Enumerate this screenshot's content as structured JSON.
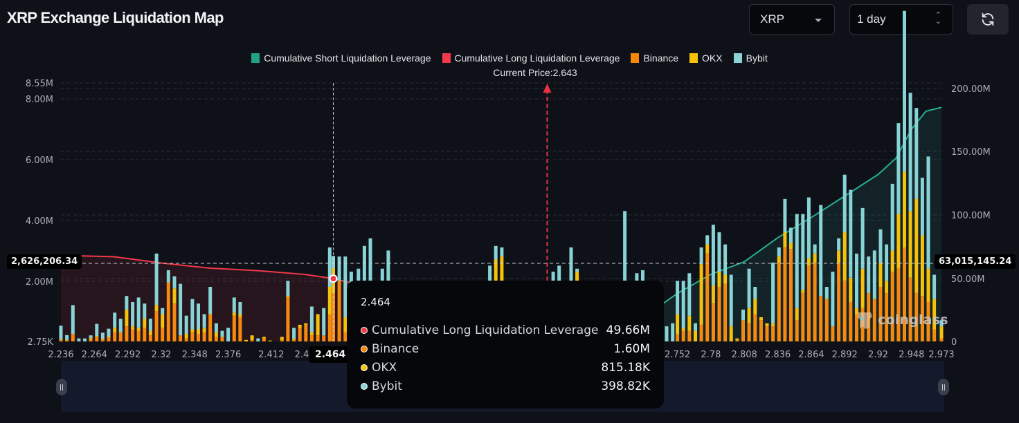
{
  "header": {
    "title": "XRP Exchange Liquidation Map",
    "coin_select": "XRP",
    "range_select": "1 day",
    "refresh_icon": "refresh-icon"
  },
  "colors": {
    "short_cumulative": "#26a889",
    "long_cumulative": "#f0394b",
    "binance": "#f58a0e",
    "okx": "#f5c10b",
    "bybit": "#87d3d6",
    "background": "#0f1118"
  },
  "legend": [
    {
      "label": "Cumulative Short Liquidation Leverage",
      "color": "#22a388"
    },
    {
      "label": "Cumulative Long Liquidation Leverage",
      "color": "#f23a4c"
    },
    {
      "label": "Binance",
      "color": "#f7870a"
    },
    {
      "label": "OKX",
      "color": "#f6c40a"
    },
    {
      "label": "Bybit",
      "color": "#88d5d8"
    }
  ],
  "current_price_label": "Current Price:2.643",
  "crosshair": {
    "left_value": "2,626,206.34",
    "right_value": "63,015,145.24",
    "x_value": "2.464"
  },
  "tooltip": {
    "title": "2.464",
    "rows": [
      {
        "label": "Cumulative Long Liquidation Leverage",
        "value": "49.66M",
        "color": "#f23a4c"
      },
      {
        "label": "Binance",
        "value": "1.60M",
        "color": "#f7870a"
      },
      {
        "label": "OKX",
        "value": "815.18K",
        "color": "#f6c40a"
      },
      {
        "label": "Bybit",
        "value": "398.82K",
        "color": "#88d5d8"
      }
    ]
  },
  "watermark": "coinglass",
  "chart_data": {
    "type": "bar",
    "title": "XRP Exchange Liquidation Map",
    "current_price": 2.643,
    "x_tick_labels": [
      "2.236",
      "2.264",
      "2.292",
      "2.32",
      "2.348",
      "2.376",
      "2.412",
      "2.44",
      "2.464",
      "2.752",
      "2.78",
      "2.808",
      "2.836",
      "2.864",
      "2.892",
      "2.92",
      "2.948",
      "2.973"
    ],
    "x_range": [
      2.236,
      2.973
    ],
    "left_axis": {
      "ticks": [
        "2.75K",
        "2.00M",
        "4.00M",
        "6.00M",
        "8.00M",
        "8.55M"
      ],
      "range": [
        2750,
        8550000
      ]
    },
    "right_axis": {
      "ticks": [
        "0",
        "50.00M",
        "100.00M",
        "150.00M",
        "200.00M"
      ],
      "range": [
        0,
        200000000
      ]
    },
    "bar_series": [
      "Binance",
      "OKX",
      "Bybit"
    ],
    "bars": [
      [
        2.236,
        0.05,
        0.02,
        0.45
      ],
      [
        2.241,
        0.04,
        0.02,
        0.15
      ],
      [
        2.246,
        0.25,
        0.0,
        0.95
      ],
      [
        2.251,
        0.0,
        0.0,
        0.1
      ],
      [
        2.256,
        0.0,
        0.0,
        0.1
      ],
      [
        2.261,
        0.08,
        0.04,
        0.08
      ],
      [
        2.266,
        0.15,
        0.03,
        0.4
      ],
      [
        2.271,
        0.06,
        0.03,
        0.2
      ],
      [
        2.276,
        0.12,
        0.05,
        0.25
      ],
      [
        2.281,
        0.3,
        0.15,
        0.5
      ],
      [
        2.286,
        0.3,
        0.0,
        0.45
      ],
      [
        2.291,
        0.5,
        0.55,
        0.45
      ],
      [
        2.296,
        0.4,
        0.1,
        0.8
      ],
      [
        2.301,
        0.35,
        0.1,
        1.0
      ],
      [
        2.306,
        0.45,
        0.3,
        0.5
      ],
      [
        2.311,
        0.2,
        0.15,
        0.4
      ],
      [
        2.316,
        1.0,
        0.2,
        1.7
      ],
      [
        2.321,
        0.45,
        0.45,
        0.2
      ],
      [
        2.326,
        1.95,
        0.0,
        0.4
      ],
      [
        2.331,
        1.25,
        0.5,
        0.4
      ],
      [
        2.336,
        0.2,
        0.0,
        1.7
      ],
      [
        2.341,
        0.1,
        0.15,
        0.6
      ],
      [
        2.346,
        0.3,
        0.1,
        1.0
      ],
      [
        2.351,
        0.25,
        0.15,
        0.85
      ],
      [
        2.356,
        0.3,
        0.15,
        0.45
      ],
      [
        2.361,
        0.9,
        0.0,
        0.9
      ],
      [
        2.366,
        0.15,
        0.15,
        0.3
      ],
      [
        2.371,
        0.15,
        0.0,
        0.2
      ],
      [
        2.376,
        0.0,
        0.0,
        0.45
      ],
      [
        2.381,
        0.85,
        0.1,
        0.5
      ],
      [
        2.386,
        0.8,
        0.1,
        0.4
      ],
      [
        2.391,
        0.0,
        0.05,
        0.0
      ],
      [
        2.396,
        0.05,
        0.15,
        0.0
      ],
      [
        2.401,
        0.0,
        0.0,
        0.1
      ],
      [
        2.406,
        0.1,
        0.05,
        0.0
      ],
      [
        2.411,
        0.0,
        0.03,
        0.0
      ],
      [
        2.416,
        0.0,
        0.0,
        0.0
      ],
      [
        2.421,
        0.05,
        0.1,
        0.0
      ],
      [
        2.426,
        1.45,
        0.05,
        0.5
      ],
      [
        2.431,
        0.05,
        0.05,
        0.35
      ],
      [
        2.436,
        0.45,
        0.1,
        0.0
      ],
      [
        2.441,
        0.55,
        0.05,
        0.0
      ],
      [
        2.446,
        0.2,
        0.1,
        0.85
      ],
      [
        2.451,
        0.2,
        0.7,
        0.0
      ],
      [
        2.456,
        0.2,
        0.0,
        0.9
      ],
      [
        2.461,
        0.9,
        0.9,
        1.3
      ],
      [
        2.464,
        1.6,
        0.82,
        0.4
      ],
      [
        2.469,
        2.0,
        0.0,
        0.8
      ],
      [
        2.474,
        0.3,
        0.5,
        2.0
      ],
      [
        2.479,
        0.3,
        0.1,
        1.9
      ],
      [
        2.485,
        0.1,
        0.1,
        2.2
      ],
      [
        2.49,
        0.5,
        0.15,
        2.5
      ],
      [
        2.495,
        0.3,
        0.1,
        3.0
      ],
      [
        2.5,
        0.1,
        0.05,
        1.6
      ],
      [
        2.505,
        0.0,
        0.1,
        2.3
      ],
      [
        2.51,
        0.1,
        0.1,
        2.8
      ],
      [
        2.515,
        0.0,
        0.6,
        1.0
      ],
      [
        2.52,
        0.3,
        0.2,
        1.5
      ],
      [
        2.525,
        0.1,
        0.1,
        1.0
      ],
      [
        2.53,
        0.3,
        0.1,
        0.4
      ],
      [
        2.535,
        0.0,
        0.2,
        0.5
      ],
      [
        2.54,
        0.0,
        0.0,
        1.8
      ],
      [
        2.545,
        0.1,
        0.1,
        0.9
      ],
      [
        2.55,
        0.0,
        0.0,
        0.4
      ],
      [
        2.556,
        0.0,
        0.0,
        0.6
      ],
      [
        2.56,
        0.1,
        0.0,
        0.3
      ],
      [
        2.565,
        0.0,
        0.0,
        0.5
      ],
      [
        2.57,
        0.0,
        0.0,
        0.8
      ],
      [
        2.575,
        0.0,
        0.0,
        0.4
      ],
      [
        2.58,
        0.0,
        0.0,
        0.6
      ],
      [
        2.585,
        0.0,
        0.0,
        0.3
      ],
      [
        2.59,
        0.0,
        0.0,
        0.4
      ],
      [
        2.595,
        0.0,
        0.0,
        2.5
      ],
      [
        2.6,
        0.1,
        2.6,
        0.45
      ],
      [
        2.605,
        0.0,
        2.8,
        0.3
      ],
      [
        2.61,
        0.0,
        0.0,
        0.5
      ],
      [
        2.615,
        0.0,
        0.0,
        0.3
      ],
      [
        2.62,
        0.0,
        0.0,
        0.8
      ],
      [
        2.625,
        0.0,
        0.0,
        0.4
      ],
      [
        2.63,
        0.0,
        0.0,
        0.5
      ],
      [
        2.636,
        0.0,
        0.0,
        0.3
      ],
      [
        2.648,
        0.0,
        0.0,
        2.3
      ],
      [
        2.653,
        0.0,
        0.0,
        2.5
      ],
      [
        2.658,
        0.0,
        0.0,
        0.4
      ],
      [
        2.663,
        0.0,
        0.0,
        3.1
      ],
      [
        2.668,
        0.0,
        2.3,
        0.1
      ],
      [
        2.673,
        0.0,
        0.0,
        0.5
      ],
      [
        2.678,
        0.0,
        0.0,
        0.3
      ],
      [
        2.683,
        0.0,
        0.0,
        0.5
      ],
      [
        2.688,
        0.0,
        0.0,
        0.4
      ],
      [
        2.693,
        0.0,
        0.0,
        0.6
      ],
      [
        2.698,
        0.0,
        0.0,
        0.4
      ],
      [
        2.703,
        0.0,
        0.0,
        0.4
      ],
      [
        2.708,
        0.5,
        0.5,
        3.3
      ],
      [
        2.713,
        0.0,
        0.0,
        0.6
      ],
      [
        2.718,
        0.0,
        0.0,
        2.25
      ],
      [
        2.723,
        0.0,
        0.0,
        2.35
      ],
      [
        2.728,
        0.0,
        0.0,
        0.6
      ],
      [
        2.733,
        0.0,
        0.0,
        0.5
      ],
      [
        2.738,
        0.0,
        0.0,
        0.4
      ],
      [
        2.743,
        0.0,
        0.0,
        0.5
      ],
      [
        2.748,
        0.0,
        0.0,
        0.6
      ],
      [
        2.752,
        0.25,
        0.65,
        1.1
      ],
      [
        2.757,
        0.35,
        0.1,
        1.55
      ],
      [
        2.762,
        0.35,
        0.5,
        1.4
      ],
      [
        2.767,
        0.0,
        0.35,
        0.25
      ],
      [
        2.772,
        0.55,
        2.0,
        0.55
      ],
      [
        2.777,
        2.9,
        0.3,
        0.3
      ],
      [
        2.782,
        1.25,
        0.6,
        2.0
      ],
      [
        2.787,
        1.8,
        0.5,
        1.3
      ],
      [
        2.792,
        1.9,
        0.3,
        1.0
      ],
      [
        2.797,
        0.0,
        0.5,
        1.7
      ],
      [
        2.802,
        0.05,
        0.05,
        0.0
      ],
      [
        2.807,
        0.7,
        0.0,
        0.35
      ],
      [
        2.812,
        0.6,
        0.5,
        1.3
      ],
      [
        2.817,
        0.9,
        0.5,
        0.4
      ],
      [
        2.822,
        0.7,
        0.1,
        0.0
      ],
      [
        2.827,
        0.5,
        0.1,
        0.0
      ],
      [
        2.832,
        0.5,
        0.1,
        2.0
      ],
      [
        2.837,
        2.6,
        0.2,
        0.3
      ],
      [
        2.842,
        3.1,
        0.5,
        1.1
      ],
      [
        2.847,
        3.05,
        0.2,
        0.5
      ],
      [
        2.852,
        0.7,
        0.4,
        3.1
      ],
      [
        2.857,
        1.6,
        0.1,
        2.5
      ],
      [
        2.862,
        2.5,
        0.25,
        2.0
      ],
      [
        2.867,
        2.6,
        0.3,
        0.3
      ],
      [
        2.872,
        1.5,
        0.0,
        3.0
      ],
      [
        2.877,
        1.4,
        0.0,
        0.4
      ],
      [
        2.882,
        0.5,
        0.0,
        1.8
      ],
      [
        2.887,
        2.6,
        0.4,
        0.4
      ],
      [
        2.892,
        2.0,
        1.6,
        1.9
      ],
      [
        2.897,
        1.3,
        0.8,
        2.9
      ],
      [
        2.902,
        0.9,
        0.2,
        1.8
      ],
      [
        2.907,
        1.1,
        1.3,
        2.0
      ],
      [
        2.912,
        1.6,
        0.0,
        1.2
      ],
      [
        2.917,
        1.4,
        0.0,
        1.6
      ],
      [
        2.922,
        1.8,
        0.8,
        1.1
      ],
      [
        2.927,
        1.6,
        0.4,
        1.2
      ],
      [
        2.932,
        2.3,
        0.7,
        2.2
      ],
      [
        2.937,
        2.4,
        1.8,
        3.0
      ],
      [
        2.942,
        3.1,
        2.5,
        5.3
      ],
      [
        2.947,
        2.1,
        2.2,
        3.9
      ],
      [
        2.952,
        1.6,
        3.1,
        3.0
      ],
      [
        2.957,
        1.5,
        2.0,
        1.9
      ],
      [
        2.962,
        1.3,
        1.1,
        3.7
      ],
      [
        2.967,
        0.4,
        1.0,
        0.8
      ],
      [
        2.973,
        0.1,
        0.4,
        0.2
      ]
    ],
    "bar_units": "millions USD (left axis)",
    "cumulative_long": {
      "name": "Cumulative Long Liquidation Leverage",
      "axis": "right",
      "x": [
        2.236,
        2.28,
        2.32,
        2.36,
        2.4,
        2.44,
        2.464,
        2.48,
        2.5,
        2.52,
        2.54,
        2.58,
        2.62,
        2.643
      ],
      "y": [
        68,
        67,
        62,
        58,
        56,
        53,
        49.66,
        46,
        40,
        32,
        22,
        12,
        4,
        0
      ]
    },
    "cumulative_short": {
      "name": "Cumulative Short Liquidation Leverage",
      "axis": "right",
      "x": [
        2.643,
        2.66,
        2.7,
        2.74,
        2.752,
        2.78,
        2.808,
        2.836,
        2.864,
        2.892,
        2.92,
        2.935,
        2.948,
        2.96,
        2.973
      ],
      "y": [
        0,
        5,
        15,
        30,
        38,
        53,
        63,
        82,
        98,
        115,
        132,
        145,
        168,
        182,
        185
      ]
    }
  }
}
